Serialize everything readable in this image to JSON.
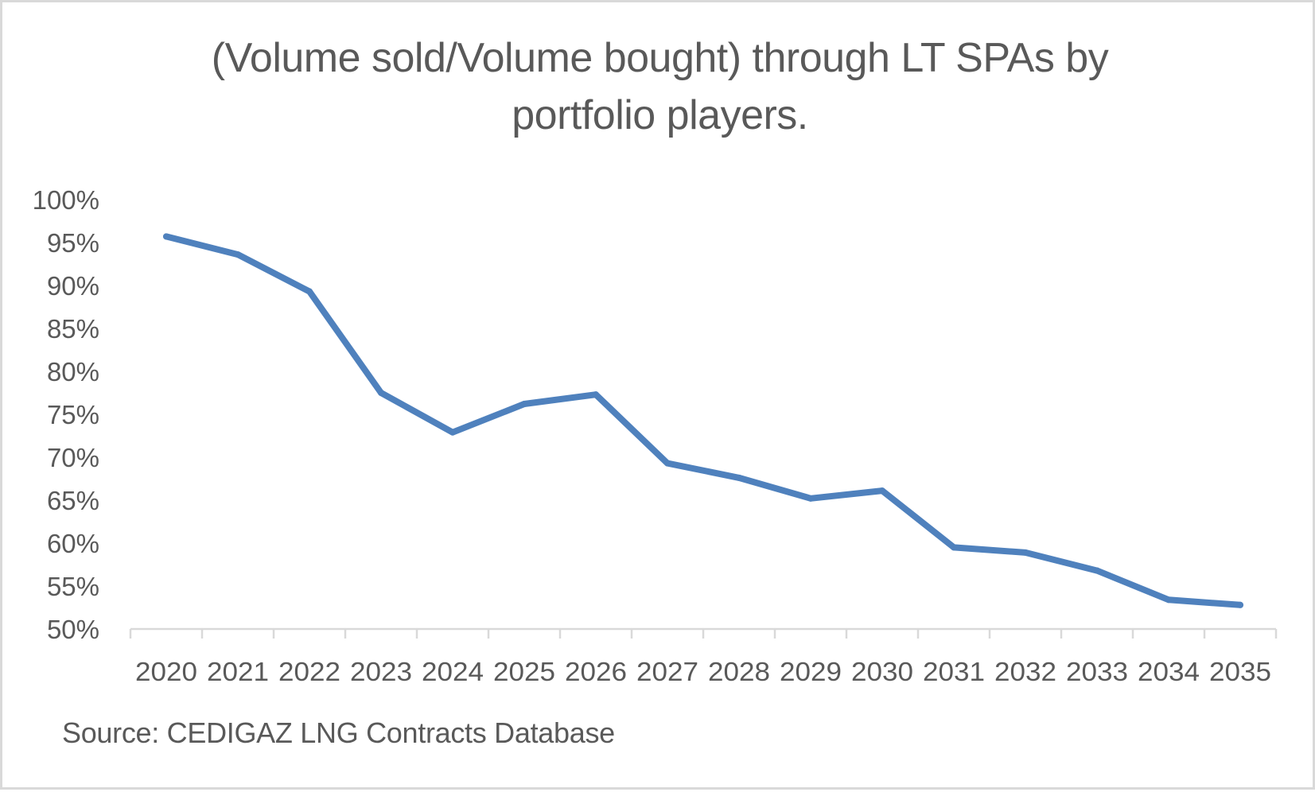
{
  "chart_data": {
    "type": "line",
    "title_lines": [
      "(Volume sold/Volume bought) through LT SPAs by",
      "portfolio players."
    ],
    "title": "(Volume sold/Volume bought) through LT SPAs by portfolio players.",
    "xlabel": "",
    "ylabel": "",
    "categories": [
      "2020",
      "2021",
      "2022",
      "2023",
      "2024",
      "2025",
      "2026",
      "2027",
      "2028",
      "2029",
      "2030",
      "2031",
      "2032",
      "2033",
      "2034",
      "2035"
    ],
    "series": [
      {
        "name": "Volume sold/Volume bought",
        "color": "#4F81BD",
        "values": [
          95.7,
          93.6,
          89.3,
          77.5,
          72.9,
          76.2,
          77.3,
          69.3,
          67.6,
          65.2,
          66.1,
          59.5,
          58.9,
          56.8,
          53.4,
          52.8
        ]
      }
    ],
    "ylim": [
      50,
      100
    ],
    "yticks": [
      50,
      55,
      60,
      65,
      70,
      75,
      80,
      85,
      90,
      95,
      100
    ],
    "ytick_labels": [
      "50%",
      "55%",
      "60%",
      "65%",
      "70%",
      "75%",
      "80%",
      "85%",
      "90%",
      "95%",
      "100%"
    ],
    "y_unit": "%",
    "grid": false,
    "legend": "none",
    "source_note": "Source: CEDIGAZ LNG Contracts Database"
  },
  "colors": {
    "line": "#4F81BD",
    "text": "#595959",
    "axis": "#d9d9d9",
    "border": "#d9d9d9"
  }
}
